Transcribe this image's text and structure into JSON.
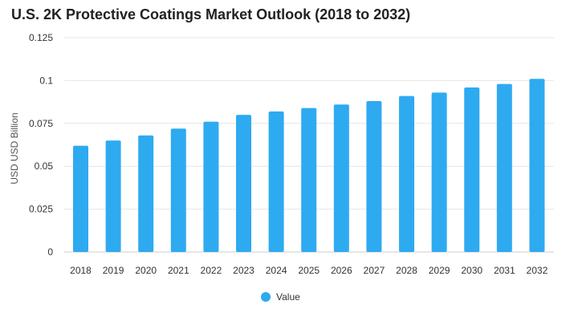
{
  "chart_data": {
    "type": "bar",
    "title": "U.S. 2K Protective Coatings Market Outlook (2018 to 2032)",
    "xlabel": "",
    "ylabel": "USD USD Billion",
    "categories": [
      "2018",
      "2019",
      "2020",
      "2021",
      "2022",
      "2023",
      "2024",
      "2025",
      "2026",
      "2027",
      "2028",
      "2029",
      "2030",
      "2031",
      "2032"
    ],
    "series": [
      {
        "name": "Value",
        "color": "#2eaaf1",
        "values": [
          0.062,
          0.065,
          0.068,
          0.072,
          0.076,
          0.08,
          0.082,
          0.084,
          0.086,
          0.088,
          0.091,
          0.093,
          0.096,
          0.098,
          0.101
        ]
      }
    ],
    "ylim": [
      0,
      0.125
    ],
    "yticks": [
      "0",
      "0.025",
      "0.05",
      "0.075",
      "0.1",
      "0.125"
    ],
    "grid": true,
    "legend": "bottom-center"
  }
}
